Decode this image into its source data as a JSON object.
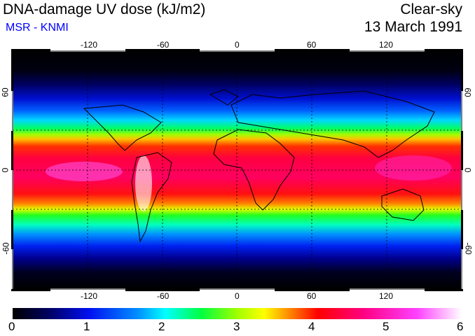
{
  "title": "DNA-damage UV dose (kJ/m2)",
  "subtitle": "MSR - KNMI",
  "condition": "Clear-sky",
  "date": "13 March 1991",
  "lon_ticks": [
    "-120",
    "-60",
    "0",
    "60",
    "120"
  ],
  "lat_ticks": [
    "60",
    "0",
    "-60"
  ],
  "colorbar": {
    "ticks": [
      "0",
      "1",
      "2",
      "3",
      "4",
      "5",
      "6"
    ],
    "min": 0,
    "max": 6
  },
  "colors": {
    "title_blue": "#0000ff",
    "scale": [
      "#000000",
      "#000080",
      "#0000ff",
      "#00ffff",
      "#00ff00",
      "#ffff00",
      "#ff8000",
      "#ff0000",
      "#ff0080",
      "#ff00ff",
      "#ffffff"
    ]
  }
}
